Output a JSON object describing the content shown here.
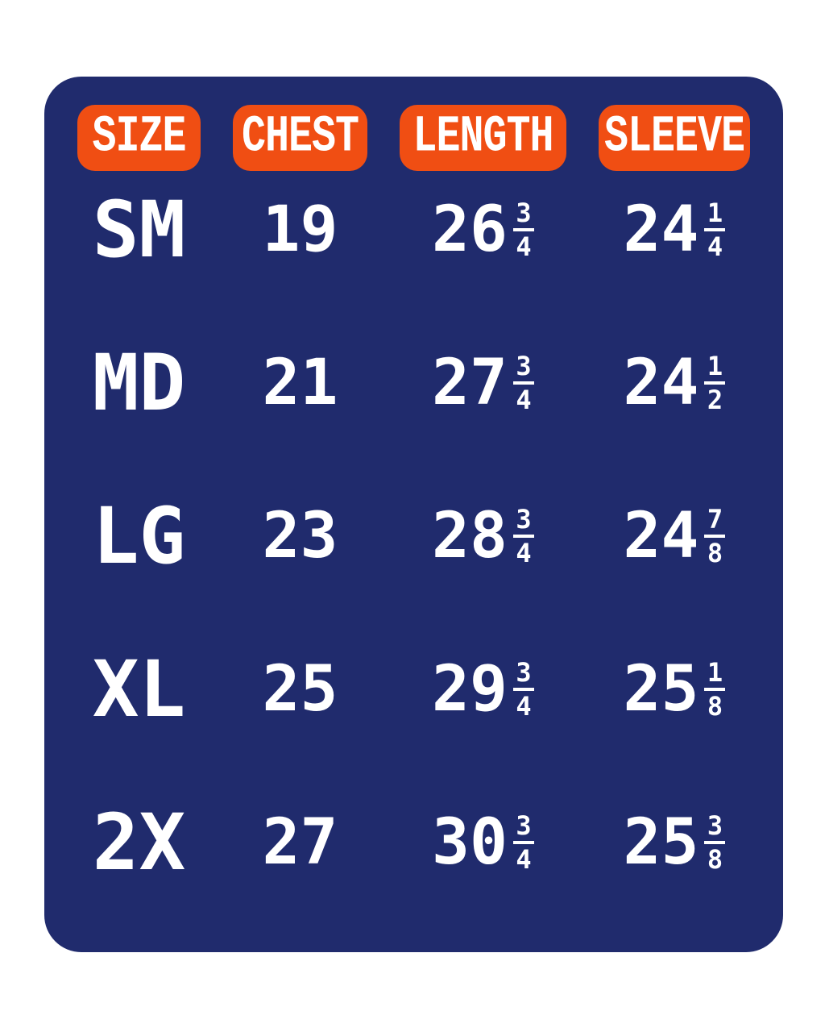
{
  "colors": {
    "page_background": "#ffffff",
    "card_background": "#202b6d",
    "header_pill_background": "#f04e13",
    "text": "#ffffff"
  },
  "table": {
    "headers": [
      "SIZE",
      "CHEST",
      "LENGTH",
      "SLEEVE"
    ],
    "rows": [
      {
        "size": "SM",
        "chest": "19",
        "length": {
          "whole": "26",
          "num": "3",
          "den": "4"
        },
        "sleeve": {
          "whole": "24",
          "num": "1",
          "den": "4"
        }
      },
      {
        "size": "MD",
        "chest": "21",
        "length": {
          "whole": "27",
          "num": "3",
          "den": "4"
        },
        "sleeve": {
          "whole": "24",
          "num": "1",
          "den": "2"
        }
      },
      {
        "size": "LG",
        "chest": "23",
        "length": {
          "whole": "28",
          "num": "3",
          "den": "4"
        },
        "sleeve": {
          "whole": "24",
          "num": "7",
          "den": "8"
        }
      },
      {
        "size": "XL",
        "chest": "25",
        "length": {
          "whole": "29",
          "num": "3",
          "den": "4"
        },
        "sleeve": {
          "whole": "25",
          "num": "1",
          "den": "8"
        }
      },
      {
        "size": "2X",
        "chest": "27",
        "length": {
          "whole": "30",
          "num": "3",
          "den": "4"
        },
        "sleeve": {
          "whole": "25",
          "num": "3",
          "den": "8"
        }
      }
    ]
  },
  "chart_data": {
    "type": "table",
    "title": "",
    "columns": [
      "SIZE",
      "CHEST",
      "LENGTH",
      "SLEEVE"
    ],
    "rows": [
      [
        "SM",
        "19",
        "26 3/4",
        "24 1/4"
      ],
      [
        "MD",
        "21",
        "27 3/4",
        "24 1/2"
      ],
      [
        "LG",
        "23",
        "28 3/4",
        "24 7/8"
      ],
      [
        "XL",
        "25",
        "29 3/4",
        "25 1/8"
      ],
      [
        "2X",
        "27",
        "30 3/4",
        "25 3/8"
      ]
    ]
  }
}
